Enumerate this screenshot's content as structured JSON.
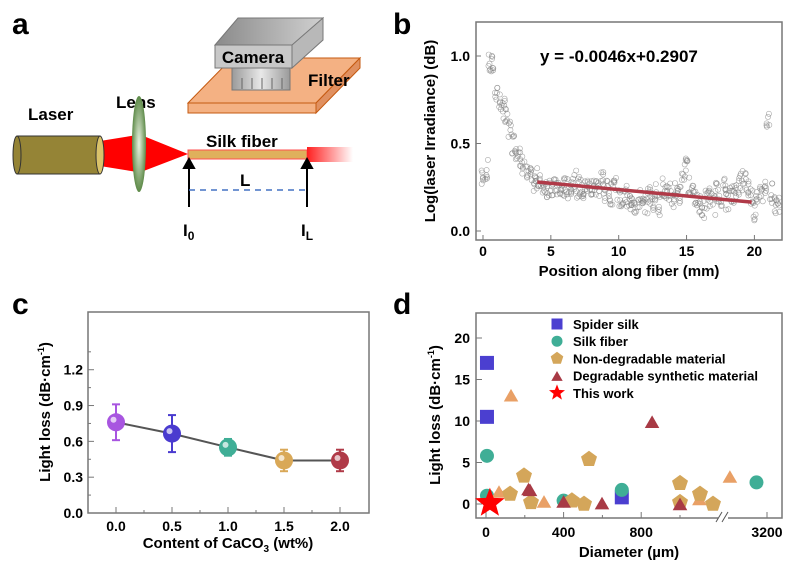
{
  "panel_a": {
    "label": "a",
    "laser": "Laser",
    "lens": "Lens",
    "camera": "Camera",
    "filter": "Filter",
    "fiber": "Silk fiber",
    "length": "L",
    "i0": {
      "base": "I",
      "sub": "0"
    },
    "il": {
      "base": "I",
      "sub": "L"
    },
    "colors": {
      "laser": "#958436",
      "beam": "#ff0000",
      "lens": "#6f9a5a",
      "fiber": "#dfb05c",
      "filter": "#f4b183",
      "camera": "#b0b0b0",
      "dash": "#4472c4"
    }
  },
  "chart_data": [
    {
      "panel": "b",
      "type": "scatter",
      "xlabel": "Position along fiber (mm)",
      "ylabel": "Log(laser Irradiance) (dB)",
      "xlim": [
        -0.5,
        22
      ],
      "ylim": [
        -0.05,
        1.2
      ],
      "xticks": [
        "0",
        "5",
        "10",
        "15",
        "20"
      ],
      "yticks": [
        "0.0",
        "0.5",
        "1.0"
      ],
      "annotation": "y = -0.0046x+0.2907",
      "x_start": 0,
      "x_step": 0.25,
      "y": [
        0.3,
        0.35,
        0.95,
        0.95,
        0.8,
        0.74,
        0.7,
        0.64,
        0.58,
        0.5,
        0.47,
        0.42,
        0.38,
        0.32,
        0.3,
        0.28,
        0.3,
        0.27,
        0.26,
        0.25,
        0.26,
        0.24,
        0.25,
        0.23,
        0.25,
        0.24,
        0.26,
        0.3,
        0.25,
        0.24,
        0.23,
        0.25,
        0.24,
        0.26,
        0.25,
        0.3,
        0.22,
        0.23,
        0.21,
        0.28,
        0.2,
        0.18,
        0.2,
        0.17,
        0.19,
        0.15,
        0.18,
        0.14,
        0.16,
        0.2,
        0.18,
        0.22,
        0.15,
        0.25,
        0.2,
        0.22,
        0.18,
        0.24,
        0.2,
        0.35,
        0.4,
        0.25,
        0.2,
        0.18,
        0.15,
        0.12,
        0.18,
        0.2,
        0.15,
        0.22,
        0.2,
        0.25,
        0.18,
        0.2,
        0.22,
        0.25,
        0.28,
        0.3,
        0.25,
        0.2,
        0.12,
        0.22,
        0.2,
        0.25,
        0.65,
        0.22,
        0.16,
        0.14
      ],
      "fit_line": {
        "x": [
          4,
          19.8
        ],
        "y": [
          0.28,
          0.165
        ],
        "color": "#b03a48"
      },
      "marker_color": "#808080"
    },
    {
      "panel": "c",
      "type": "line",
      "xlabel": {
        "pre": "Content of CaCO",
        "sub": "3",
        "post": " (wt%)"
      },
      "ylabel": {
        "pre": "Light loss (dB·cm",
        "sup": "-1",
        "post": ")"
      },
      "xlim": [
        -0.25,
        2.25
      ],
      "ylim": [
        0,
        1.38
      ],
      "xticks": [
        "0.0",
        "0.5",
        "1.0",
        "1.5",
        "2.0"
      ],
      "yticks": [
        "0.0",
        "0.3",
        "0.6",
        "0.9",
        "1.2"
      ],
      "x": [
        0.0,
        0.5,
        1.0,
        1.5,
        2.0
      ],
      "values": [
        0.76,
        0.665,
        0.55,
        0.44,
        0.44
      ],
      "errors": [
        0.15,
        0.155,
        0.07,
        0.09,
        0.09
      ],
      "colors": [
        "#a855e0",
        "#4a3bcf",
        "#3fae96",
        "#d9a857",
        "#b03a48"
      ]
    },
    {
      "panel": "d",
      "type": "scatter",
      "xlabel": "Diameter (µm)",
      "ylabel": {
        "pre": "Light loss (dB·cm",
        "sup": "-1",
        "post": ")"
      },
      "ylim": [
        -1.5,
        23
      ],
      "x_break": [
        1216,
        2600
      ],
      "xticks": [
        {
          "v": 0,
          "t": "0"
        },
        {
          "v": 400,
          "t": "400"
        },
        {
          "v": 800,
          "t": "800"
        },
        {
          "v": 3200,
          "t": "3200"
        }
      ],
      "yticks": [
        "0",
        "5",
        "10",
        "15",
        "20"
      ],
      "series": [
        {
          "name": "Spider silk",
          "marker": "square",
          "color": "#4b3fd0",
          "points": [
            [
              5,
              17
            ],
            [
              5,
              10.5
            ],
            [
              700,
              0.8
            ]
          ]
        },
        {
          "name": "Silk fiber",
          "marker": "circle",
          "color": "#3fae96",
          "points": [
            [
              5,
              5.8
            ],
            [
              5,
              1.0
            ],
            [
              400,
              0.4
            ],
            [
              700,
              1.7
            ],
            [
              3050,
              2.6
            ]
          ]
        },
        {
          "name": "Non-degradable material",
          "marker": "pentagon",
          "color": "#d4a65a",
          "points": [
            [
              124,
              1.2
            ],
            [
              196,
              3.4
            ],
            [
              232,
              0.2
            ],
            [
              443,
              0.4
            ],
            [
              505,
              0
            ],
            [
              531,
              5.4
            ],
            [
              1000,
              2.5
            ],
            [
              1000,
              0.2
            ],
            [
              1103,
              1.2
            ],
            [
              1170,
              0
            ]
          ],
          "extra_marker": "triangle",
          "extra_color": "#e9a066",
          "extra_points": [
            [
              129,
              13.1
            ],
            [
              67,
              1.5
            ],
            [
              299,
              0.3
            ],
            [
              1100,
              0.6
            ],
            [
              2670,
              3.3
            ]
          ]
        },
        {
          "name": "Degradable synthetic material",
          "marker": "triangle",
          "color": "#a83a45",
          "points": [
            [
              227,
              1.7
            ],
            [
              219,
              1.8
            ],
            [
              400,
              0.3
            ],
            [
              598,
              0.1
            ],
            [
              856,
              9.9
            ],
            [
              1000,
              0
            ]
          ]
        },
        {
          "name": "This work",
          "marker": "star",
          "color": "#ff0000",
          "label_color": "#ff0000",
          "points": [
            [
              20,
              0.1
            ]
          ]
        }
      ]
    }
  ],
  "labels": {
    "b": "b",
    "c": "c",
    "d": "d"
  }
}
